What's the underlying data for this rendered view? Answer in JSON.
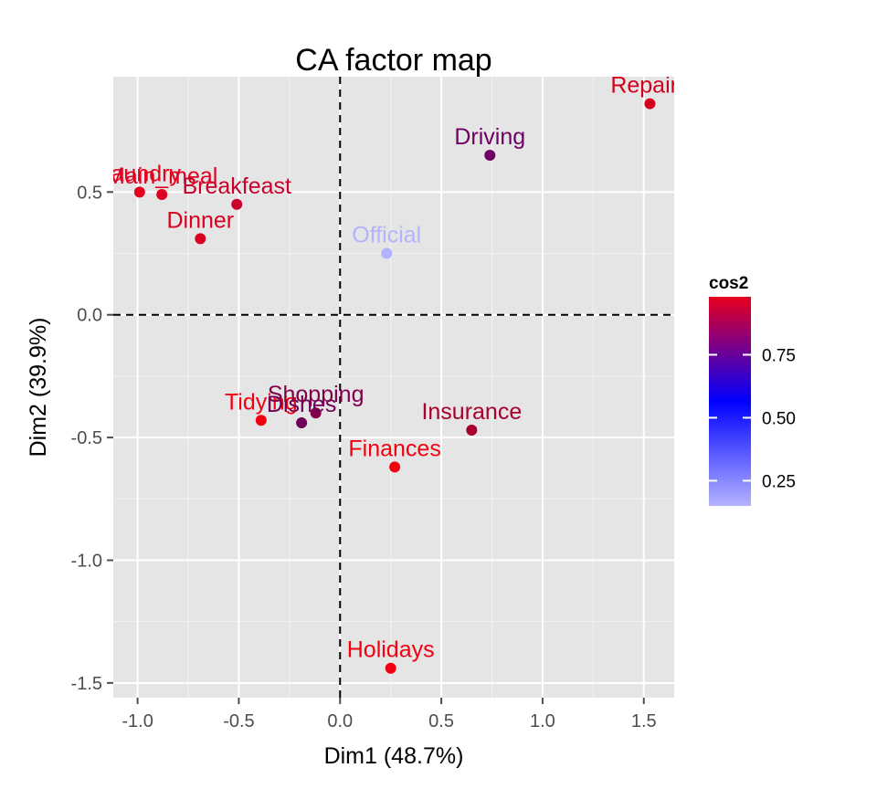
{
  "chart_data": {
    "type": "scatter",
    "title": "CA factor map",
    "xlabel": "Dim1 (48.7%)",
    "ylabel": "Dim2 (39.9%)",
    "xlim": [
      -1.12,
      1.65
    ],
    "ylim": [
      -1.56,
      0.97
    ],
    "x_ticks": [
      -1.0,
      -0.5,
      0.0,
      0.5,
      1.0,
      1.5
    ],
    "y_ticks": [
      -1.5,
      -1.0,
      -0.5,
      0.0,
      0.5
    ],
    "x_tick_labels": [
      "-1.0",
      "-0.5",
      "0.0",
      "0.5",
      "1.0",
      "1.5"
    ],
    "y_tick_labels": [
      "-1.5",
      "-1.0",
      "-0.5",
      "0.0",
      "0.5"
    ],
    "grid": true,
    "reference_lines": {
      "x": 0,
      "y": 0,
      "style": "dashed"
    },
    "legend": {
      "title": "cos2",
      "placement": "right",
      "ticks": [
        0.25,
        0.5,
        0.75
      ],
      "tick_labels": [
        "0.25",
        "0.50",
        "0.75"
      ],
      "range": [
        0.15,
        0.98
      ],
      "colors": {
        "low": "#b3b3ff",
        "mid": "#0000ff",
        "high": "#e8001e"
      }
    },
    "points": [
      {
        "label": "Laundry",
        "x": -0.99,
        "y": 0.5,
        "color": "#e8001e"
      },
      {
        "label": "Main_meal",
        "x": -0.88,
        "y": 0.49,
        "color": "#e0001f"
      },
      {
        "label": "Breakfeast",
        "x": -0.51,
        "y": 0.45,
        "color": "#c8002a"
      },
      {
        "label": "Dinner",
        "x": -0.69,
        "y": 0.31,
        "color": "#d90022"
      },
      {
        "label": "Repairs",
        "x": 1.53,
        "y": 0.86,
        "color": "#d2001c"
      },
      {
        "label": "Driving",
        "x": 0.74,
        "y": 0.65,
        "color": "#6e0065"
      },
      {
        "label": "Official",
        "x": 0.23,
        "y": 0.25,
        "color": "#b3b3ff"
      },
      {
        "label": "Tidying",
        "x": -0.39,
        "y": -0.43,
        "color": "#f20010"
      },
      {
        "label": "Dishes",
        "x": -0.19,
        "y": -0.44,
        "color": "#6e0059"
      },
      {
        "label": "Shopping",
        "x": -0.12,
        "y": -0.4,
        "color": "#82004a"
      },
      {
        "label": "Insurance",
        "x": 0.65,
        "y": -0.47,
        "color": "#a8002c"
      },
      {
        "label": "Finances",
        "x": 0.27,
        "y": -0.62,
        "color": "#f20010"
      },
      {
        "label": "Holidays",
        "x": 0.25,
        "y": -1.44,
        "color": "#f20010"
      }
    ]
  }
}
